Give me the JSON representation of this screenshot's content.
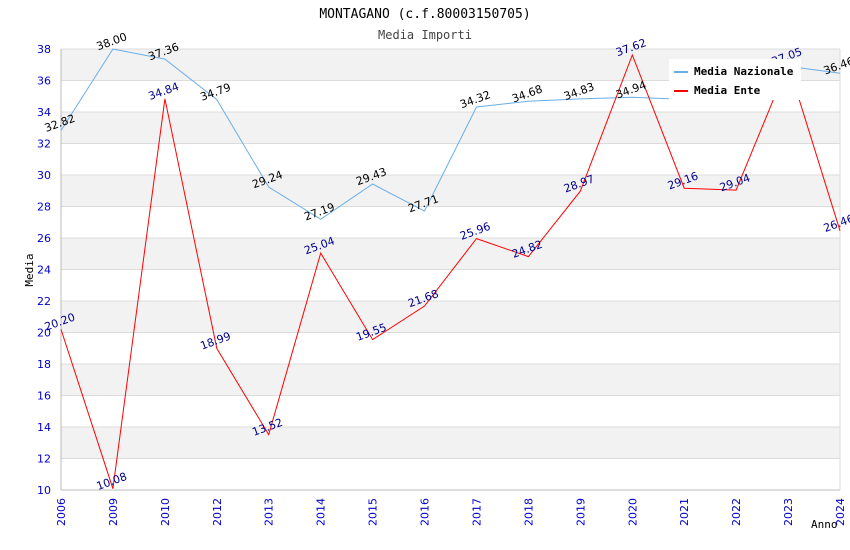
{
  "chart_data": {
    "type": "line",
    "title": "MONTAGANO (c.f.80003150705)",
    "subtitle": "Media Importi",
    "xlabel": "Anno",
    "ylabel": "Media",
    "ylim": [
      10,
      38
    ],
    "ytick_step": 2,
    "grid": true,
    "legend_position": "top-right",
    "categories": [
      "2006",
      "2009",
      "2010",
      "2012",
      "2013",
      "2014",
      "2015",
      "2016",
      "2017",
      "2018",
      "2019",
      "2020",
      "2021",
      "2022",
      "2023",
      "2024"
    ],
    "series": [
      {
        "name": "Media Nazionale",
        "color": "#6aaee8",
        "label_color": "#000000",
        "values": [
          32.82,
          38.0,
          37.36,
          34.79,
          29.24,
          27.19,
          29.43,
          27.71,
          34.32,
          34.68,
          34.83,
          34.94,
          34.8,
          34.82,
          36.9,
          36.46
        ],
        "labels": [
          "32.82",
          "38.00",
          "37.36",
          "34.79",
          "29.24",
          "27.19",
          "29.43",
          "27.71",
          "34.32",
          "34.68",
          "34.83",
          "34.94",
          "",
          "",
          "",
          "36.46"
        ]
      },
      {
        "name": "Media Ente",
        "color": "#ff0000",
        "label_color": "#00008b",
        "values": [
          20.2,
          10.08,
          34.84,
          18.99,
          13.52,
          25.04,
          19.55,
          21.68,
          25.96,
          24.82,
          28.97,
          37.62,
          29.16,
          29.04,
          37.05,
          26.46
        ],
        "labels": [
          "20.20",
          "10.08",
          "34.84",
          "18.99",
          "13.52",
          "25.04",
          "19.55",
          "21.68",
          "25.96",
          "24.82",
          "28.97",
          "37.62",
          "29.16",
          "29.04",
          "37.05",
          "26.46"
        ]
      }
    ]
  }
}
